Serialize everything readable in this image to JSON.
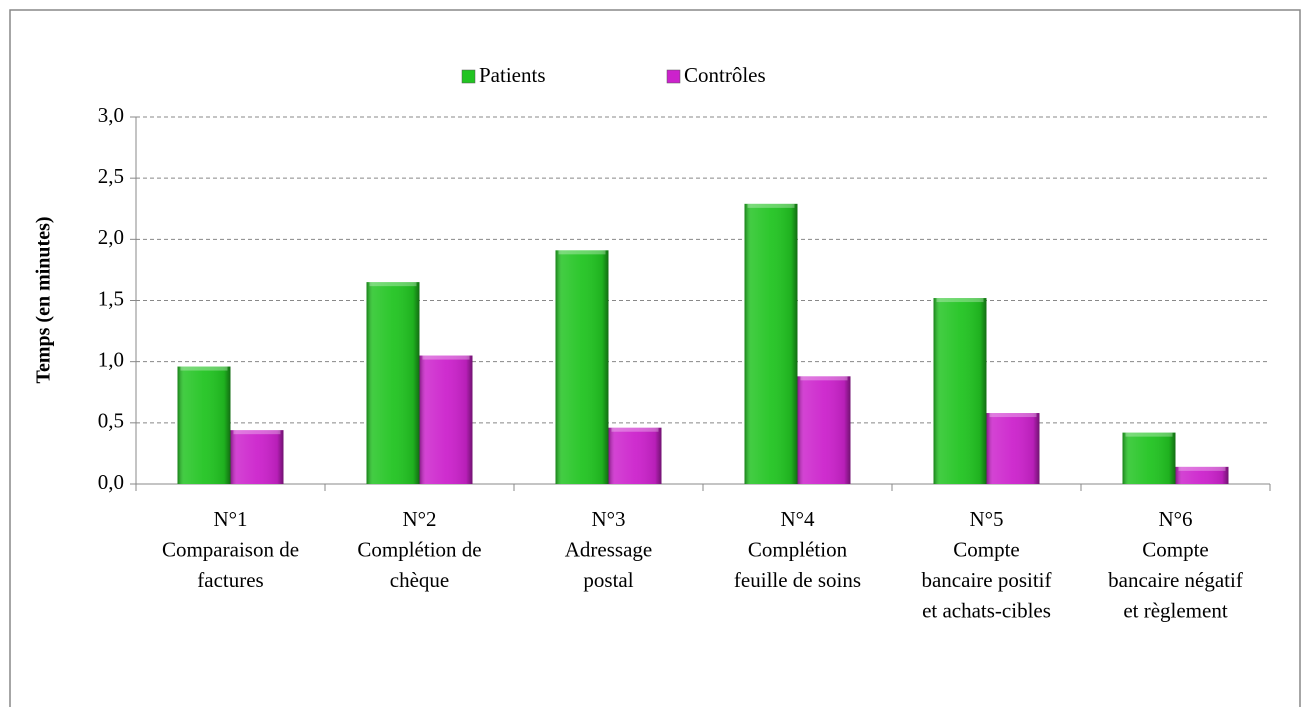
{
  "chart_data": {
    "type": "bar",
    "ylabel": "Temps (en minutes)",
    "categories": [
      [
        "N°1",
        "Comparaison de",
        "factures"
      ],
      [
        "N°2",
        "Complétion de",
        "chèque"
      ],
      [
        "N°3",
        "Adressage",
        "postal"
      ],
      [
        "N°4",
        "Complétion",
        "feuille de soins"
      ],
      [
        "N°5",
        "Compte",
        "bancaire positif",
        "et achats-cibles"
      ],
      [
        "N°6",
        "Compte",
        "bancaire négatif",
        "et règlement"
      ]
    ],
    "series": [
      {
        "name": "Patients",
        "color": "#22c422",
        "values": [
          0.96,
          1.65,
          1.91,
          2.29,
          1.52,
          0.42
        ]
      },
      {
        "name": "Contrôles",
        "color": "#cc22cc",
        "values": [
          0.44,
          1.05,
          0.46,
          0.88,
          0.58,
          0.14
        ]
      }
    ],
    "ylim": [
      0,
      3
    ],
    "yticks": [
      {
        "value": 0,
        "label": "0,0"
      },
      {
        "value": 0.5,
        "label": "0,5"
      },
      {
        "value": 1,
        "label": "1,0"
      },
      {
        "value": 1.5,
        "label": "1,5"
      },
      {
        "value": 2,
        "label": "2,0"
      },
      {
        "value": 2.5,
        "label": "2,5"
      },
      {
        "value": 3,
        "label": "3,0"
      }
    ],
    "grid": true,
    "legend": "top"
  }
}
